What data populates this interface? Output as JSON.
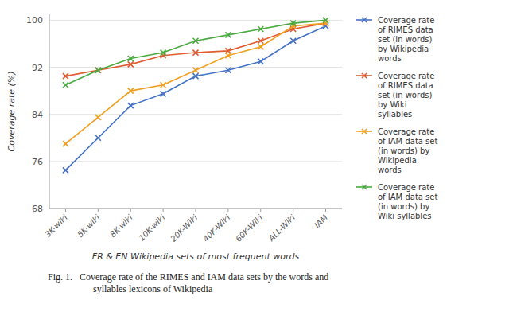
{
  "chart_data": {
    "type": "line",
    "xlabel": "FR & EN Wikipedia sets of most frequent words",
    "ylabel": "Coverage rate (%)",
    "annotations": [
      "Fig. 1.   Coverage rate of the RIMES and IAM data sets by the words and\n                   syllables lexicons of Wikipedia"
    ],
    "categories": [
      "3K-wiki",
      "5K-wiki",
      "8K-wiki",
      "10K-wiki",
      "20K-Wiki",
      "40K-Wiki",
      "60K-Wiki",
      "ALL-Wiki",
      "IAM"
    ],
    "series": [
      {
        "name": "Coverage rate\nof RIMES data\nset (in words)\nby Wikipedia\nwords",
        "color": "#4472c4",
        "marker": "x",
        "values": [
          74.5,
          80.0,
          85.5,
          87.5,
          90.5,
          91.5,
          93.0,
          96.5,
          99.0
        ]
      },
      {
        "name": "Coverage rate\nof RIMES data\nset (in words)\nby Wiki\nsyllables",
        "color": "#e05c30",
        "marker": "x",
        "values": [
          90.5,
          91.5,
          92.5,
          94.0,
          94.5,
          94.8,
          96.5,
          98.5,
          99.5
        ]
      },
      {
        "name": "Coverage rate\nof IAM data set\n(in words) by\nWikipedia\nwords",
        "color": "#f0a020",
        "marker": "x",
        "values": [
          79.0,
          83.5,
          88.0,
          89.0,
          91.5,
          94.0,
          95.5,
          99.0,
          99.5
        ]
      },
      {
        "name": "Coverage rate\nof IAM data set\n(in words) by\nWiki syllables",
        "color": "#4aaa40",
        "marker": "x",
        "values": [
          89.0,
          91.5,
          93.5,
          94.5,
          96.5,
          97.5,
          98.5,
          99.5,
          100.0
        ]
      }
    ],
    "ylim": [
      68,
      101
    ],
    "yticks": [
      68,
      76,
      84,
      92,
      100
    ],
    "grid": true,
    "legend": "right"
  }
}
